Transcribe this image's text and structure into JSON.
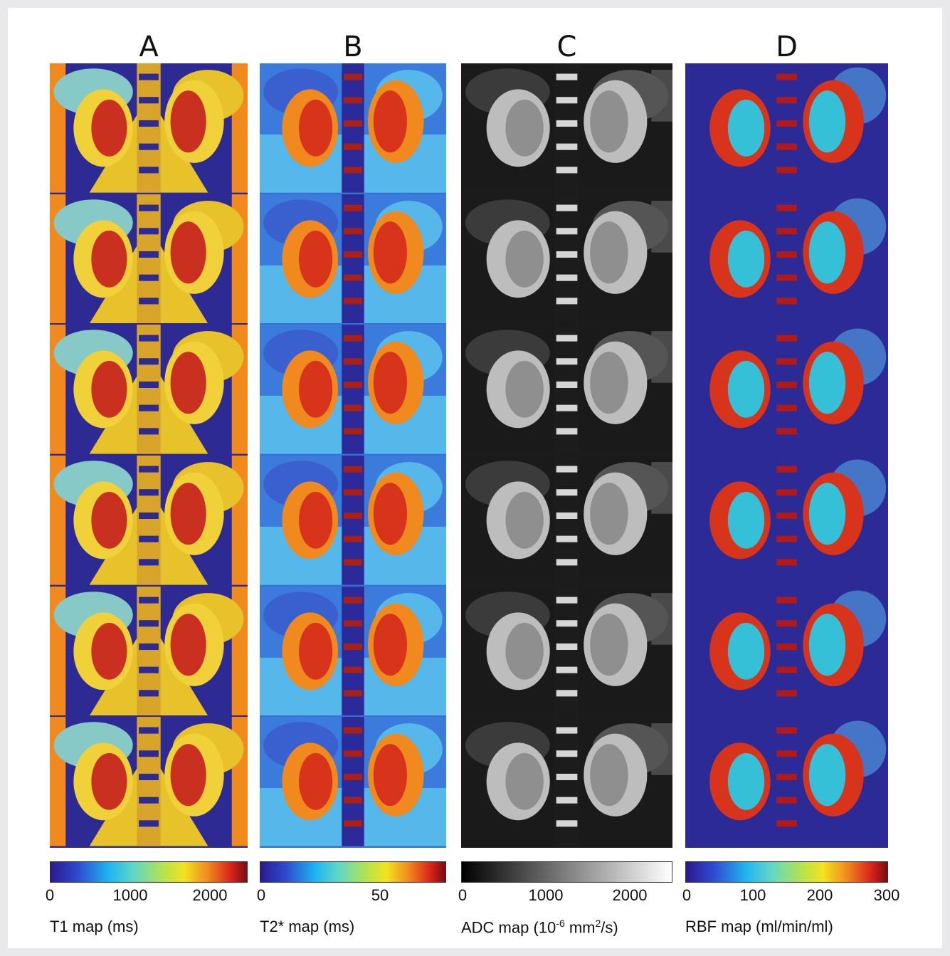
{
  "panels": [
    {
      "letter": "A",
      "unit_label": "T1 map (ms)",
      "ticks": [
        "0",
        "1000",
        "2000"
      ],
      "colormap": "jet"
    },
    {
      "letter": "B",
      "unit_label": "T2* map (ms)",
      "ticks": [
        "0",
        "50"
      ],
      "colormap": "jet"
    },
    {
      "letter": "C",
      "unit_label_pre": "ADC map (10",
      "unit_label_sup": "-6",
      "unit_label_mid": " mm",
      "unit_label_sup2": "2",
      "unit_label_post": "/s)",
      "ticks": [
        "0",
        "1000",
        "2000"
      ],
      "colormap": "gray"
    },
    {
      "letter": "D",
      "unit_label": "RBF map (ml/min/ml)",
      "ticks": [
        "0",
        "100",
        "200",
        "300"
      ],
      "colormap": "jet"
    }
  ],
  "colors": {
    "jet_bar": "linear-gradient(to right,#2a1a8c 0%,#2e4bd3 14%,#1fb6f0 30%,#5fd6c8 42%,#b8e34a 58%,#f4e21e 68%,#f08a1e 80%,#d8231b 92%,#7a0d10 100%)",
    "gray_bar": "linear-gradient(to right,#000 0%,#ffffff 100%)"
  }
}
